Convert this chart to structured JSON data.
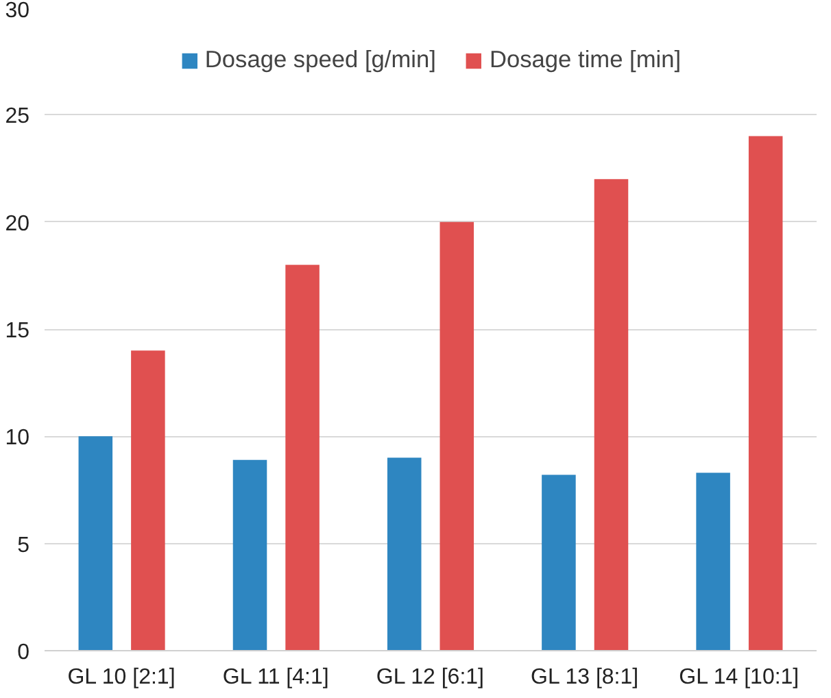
{
  "chart_data": {
    "type": "bar",
    "categories": [
      "GL 10 [2:1]",
      "GL 11 [4:1]",
      "GL 12 [6:1]",
      "GL 13 [8:1]",
      "GL 14 [10:1]"
    ],
    "series": [
      {
        "name": "Dosage speed [g/min]",
        "color": "#2e86c1",
        "values": [
          10,
          8.9,
          9,
          8.2,
          8.3
        ]
      },
      {
        "name": "Dosage time [min]",
        "color": "#e05050",
        "values": [
          14,
          18,
          20,
          22,
          24
        ]
      }
    ],
    "ylim": [
      0,
      30
    ],
    "yticks": [
      0,
      5,
      10,
      15,
      20,
      25,
      30
    ],
    "grid": "y",
    "legend": "top"
  }
}
